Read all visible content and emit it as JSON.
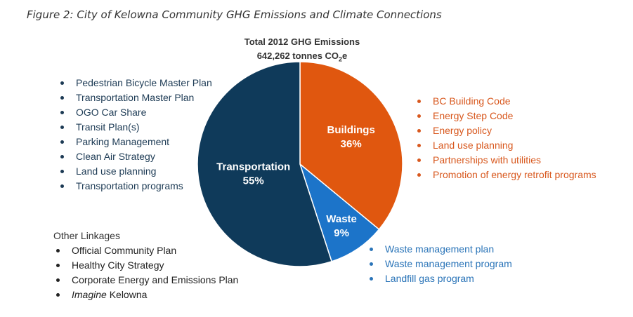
{
  "figure_title": "Figure 2:  City of Kelowna Community GHG Emissions and Climate Connections",
  "chart_title_line1": "Total 2012 GHG Emissions",
  "chart_title_line2_prefix": "642,262 tonnes CO",
  "chart_title_line2_sub": "2",
  "chart_title_line2_suffix": "e",
  "colors": {
    "transportation": "#0f3a5a",
    "buildings": "#e0570f",
    "waste": "#1c74c9"
  },
  "chart_data": {
    "type": "pie",
    "title": "Total 2012 GHG Emissions",
    "subtitle": "642,262 tonnes CO2e",
    "slices": [
      {
        "label": "Buildings",
        "value": 36,
        "display": "36%"
      },
      {
        "label": "Waste",
        "value": 9,
        "display": "9%"
      },
      {
        "label": "Transportation",
        "value": 55,
        "display": "55%"
      }
    ]
  },
  "transportation_items": [
    "Pedestrian Bicycle Master Plan",
    "Transportation Master Plan",
    "OGO Car Share",
    "Transit Plan(s)",
    "Parking Management",
    "Clean Air Strategy",
    "Land use planning",
    "Transportation programs"
  ],
  "buildings_items": [
    "BC Building Code",
    "Energy Step Code",
    "Energy policy",
    "Land use planning",
    "Partnerships with utilities",
    "Promotion of energy retrofit programs"
  ],
  "waste_items": [
    "Waste management plan",
    "Waste management program",
    "Landfill gas program"
  ],
  "other_heading": "Other Linkages",
  "other_items": [
    {
      "text": "Official Community Plan"
    },
    {
      "text": "Healthy City Strategy"
    },
    {
      "text": "Corporate Energy and Emissions Plan"
    },
    {
      "em": "Imagine",
      "text": " Kelowna"
    }
  ]
}
